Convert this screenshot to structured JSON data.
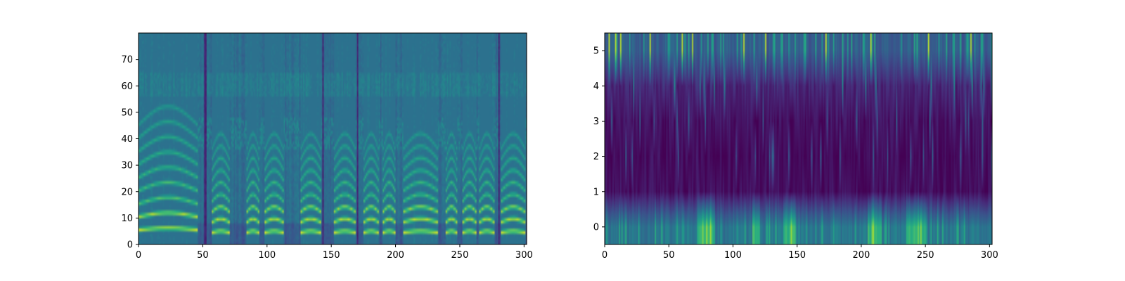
{
  "chart_data": [
    {
      "type": "heatmap",
      "title": "",
      "xlabel": "",
      "ylabel": "",
      "xlim": [
        0,
        302
      ],
      "ylim": [
        0,
        80
      ],
      "x_ticks": [
        0,
        50,
        100,
        150,
        200,
        250,
        300
      ],
      "x_tick_labels": [
        "0",
        "50",
        "100",
        "150",
        "200",
        "250",
        "300"
      ],
      "y_ticks": [
        0,
        10,
        20,
        30,
        40,
        50,
        60,
        70
      ],
      "y_tick_labels": [
        "0",
        "10",
        "20",
        "30",
        "40",
        "50",
        "60",
        "70"
      ],
      "colormap": "viridis",
      "grid": false,
      "rows": 80,
      "cols": 302,
      "voiced_segments": [
        {
          "x": [
            0,
            45
          ],
          "f0_bin": 5.0
        },
        {
          "x": [
            57,
            70
          ],
          "f0_bin": 4.0
        },
        {
          "x": [
            84,
            93
          ],
          "f0_bin": 4.0
        },
        {
          "x": [
            98,
            112
          ],
          "f0_bin": 4.0
        },
        {
          "x": [
            126,
            141
          ],
          "f0_bin": 4.0
        },
        {
          "x": [
            152,
            168
          ],
          "f0_bin": 4.0
        },
        {
          "x": [
            175,
            186
          ],
          "f0_bin": 4.0
        },
        {
          "x": [
            190,
            199
          ],
          "f0_bin": 4.0
        },
        {
          "x": [
            206,
            232
          ],
          "f0_bin": 4.0
        },
        {
          "x": [
            239,
            247
          ],
          "f0_bin": 4.0
        },
        {
          "x": [
            252,
            262
          ],
          "f0_bin": 4.0
        },
        {
          "x": [
            265,
            276
          ],
          "f0_bin": 4.0
        },
        {
          "x": [
            282,
            300
          ],
          "f0_bin": 4.0
        }
      ],
      "silence_columns": [
        51,
        52,
        143,
        170,
        280
      ]
    },
    {
      "type": "heatmap",
      "title": "",
      "xlabel": "",
      "ylabel": "",
      "xlim": [
        0,
        302
      ],
      "ylim": [
        -0.5,
        5.5
      ],
      "x_ticks": [
        0,
        50,
        100,
        150,
        200,
        250,
        300
      ],
      "x_tick_labels": [
        "0",
        "50",
        "100",
        "150",
        "200",
        "250",
        "300"
      ],
      "y_ticks": [
        0,
        1,
        2,
        3,
        4,
        5
      ],
      "y_tick_labels": [
        "0",
        "1",
        "2",
        "3",
        "4",
        "5"
      ],
      "colormap": "viridis",
      "grid": false,
      "rows": 6,
      "cols": 302,
      "row_mean_levels": [
        0.4,
        0.04,
        0.03,
        0.05,
        0.12,
        0.3
      ],
      "bright_row0_regions": [
        [
          72,
          85
        ],
        [
          115,
          120
        ],
        [
          140,
          148
        ],
        [
          205,
          215
        ],
        [
          235,
          250
        ]
      ],
      "bright_row5_columns": [
        3,
        8,
        12,
        35,
        60,
        68,
        108,
        125,
        172,
        207,
        252,
        285
      ]
    }
  ]
}
